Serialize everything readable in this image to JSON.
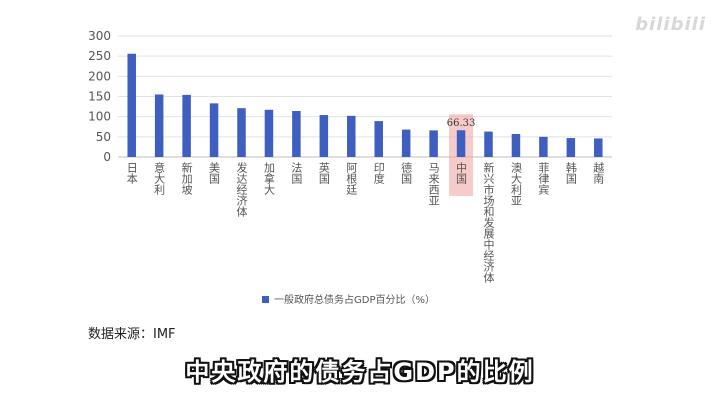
{
  "watermark": "bilibili",
  "source": "数据来源：IMF",
  "subtitle": "中央政府的债务占GDP的比例",
  "chart_data": {
    "type": "bar",
    "categories": [
      "日本",
      "意大利",
      "新加坡",
      "美国",
      "发达经济体",
      "加拿大",
      "法国",
      "英国",
      "阿根廷",
      "印度",
      "德国",
      "马来西亚",
      "中国",
      "新兴市场和发展中经济体",
      "澳大利亚",
      "菲律宾",
      "韩国",
      "越南"
    ],
    "series": [
      {
        "name": "一般政府总债务占GDP百分比（%）",
        "values": [
          256,
          155,
          154,
          133,
          121,
          117,
          114,
          104,
          102,
          89,
          68,
          66,
          66.33,
          63,
          57,
          50,
          47,
          46
        ],
        "color": "#3e5fc0"
      }
    ],
    "highlight": {
      "category": "中国",
      "label": "66.33",
      "color": "#f2a0a0"
    },
    "yticks": [
      0,
      50,
      100,
      150,
      200,
      250,
      300
    ],
    "ylim": [
      0,
      300
    ],
    "legend_position": "bottom",
    "grid": true
  }
}
